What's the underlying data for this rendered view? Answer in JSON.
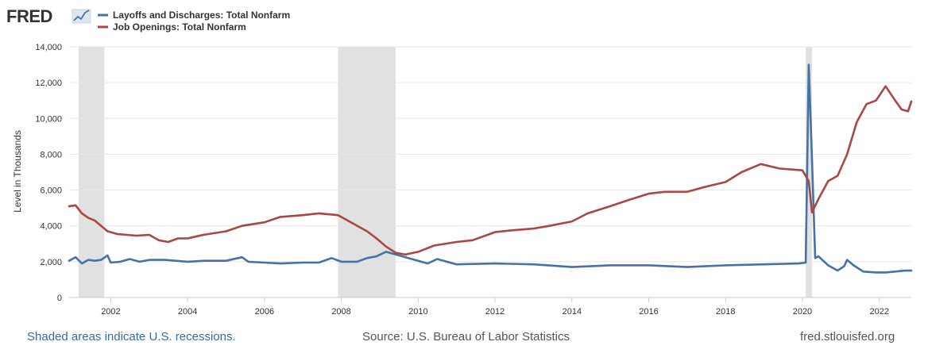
{
  "logo": {
    "text": "FRED"
  },
  "legend": [
    {
      "label": "Layoffs and Discharges: Total Nonfarm",
      "color": "#4572a7"
    },
    {
      "label": "Job Openings: Total Nonfarm",
      "color": "#aa4643"
    }
  ],
  "footer": {
    "note": "Shaded areas indicate U.S. recessions.",
    "source": "Source: U.S. Bureau of Labor Statistics",
    "site": "fred.stlouisfed.org"
  },
  "chart_data": {
    "type": "line",
    "ylabel": "Level in Thousands",
    "ylim": [
      0,
      14000
    ],
    "xlim": [
      "2000-12-01",
      "2022-11-01"
    ],
    "y_ticks": [
      "0",
      "2,000",
      "4,000",
      "6,000",
      "8,000",
      "10,000",
      "12,000",
      "14,000"
    ],
    "x_ticks": [
      "2002",
      "2004",
      "2006",
      "2008",
      "2010",
      "2012",
      "2014",
      "2016",
      "2018",
      "2020",
      "2022"
    ],
    "grid": true,
    "legend_position": "top-left",
    "recessions": [
      [
        "2001-03-01",
        "2001-11-01"
      ],
      [
        "2007-12-01",
        "2009-06-01"
      ],
      [
        "2020-02-01",
        "2020-04-01"
      ]
    ],
    "series": [
      {
        "name": "Layoffs and Discharges: Total Nonfarm",
        "color": "#4572a7",
        "points": [
          [
            "2000-12-01",
            2050
          ],
          [
            "2001-02-01",
            2250
          ],
          [
            "2001-04-01",
            1900
          ],
          [
            "2001-06-01",
            2100
          ],
          [
            "2001-08-01",
            2050
          ],
          [
            "2001-10-01",
            2100
          ],
          [
            "2001-12-01",
            2350
          ],
          [
            "2002-01-01",
            1950
          ],
          [
            "2002-04-01",
            2000
          ],
          [
            "2002-07-01",
            2150
          ],
          [
            "2002-10-01",
            2000
          ],
          [
            "2003-01-01",
            2100
          ],
          [
            "2003-06-01",
            2100
          ],
          [
            "2004-01-01",
            2000
          ],
          [
            "2004-06-01",
            2050
          ],
          [
            "2005-01-01",
            2050
          ],
          [
            "2005-06-01",
            2250
          ],
          [
            "2005-08-01",
            2000
          ],
          [
            "2006-01-01",
            1950
          ],
          [
            "2006-06-01",
            1900
          ],
          [
            "2007-01-01",
            1950
          ],
          [
            "2007-06-01",
            1950
          ],
          [
            "2007-10-01",
            2200
          ],
          [
            "2008-01-01",
            2000
          ],
          [
            "2008-06-01",
            2000
          ],
          [
            "2008-09-01",
            2200
          ],
          [
            "2008-12-01",
            2300
          ],
          [
            "2009-03-01",
            2550
          ],
          [
            "2009-06-01",
            2400
          ],
          [
            "2009-09-01",
            2250
          ],
          [
            "2010-01-01",
            2050
          ],
          [
            "2010-04-01",
            1900
          ],
          [
            "2010-07-01",
            2150
          ],
          [
            "2011-01-01",
            1850
          ],
          [
            "2012-01-01",
            1900
          ],
          [
            "2013-01-01",
            1850
          ],
          [
            "2014-01-01",
            1700
          ],
          [
            "2015-01-01",
            1800
          ],
          [
            "2016-01-01",
            1800
          ],
          [
            "2017-01-01",
            1700
          ],
          [
            "2018-01-01",
            1800
          ],
          [
            "2019-01-01",
            1850
          ],
          [
            "2019-12-01",
            1900
          ],
          [
            "2020-02-01",
            1950
          ],
          [
            "2020-03-01",
            13000
          ],
          [
            "2020-04-01",
            7700
          ],
          [
            "2020-05-01",
            2200
          ],
          [
            "2020-06-01",
            2300
          ],
          [
            "2020-09-01",
            1800
          ],
          [
            "2020-12-01",
            1500
          ],
          [
            "2021-02-01",
            1750
          ],
          [
            "2021-03-01",
            2100
          ],
          [
            "2021-05-01",
            1800
          ],
          [
            "2021-08-01",
            1450
          ],
          [
            "2021-12-01",
            1400
          ],
          [
            "2022-03-01",
            1400
          ],
          [
            "2022-06-01",
            1450
          ],
          [
            "2022-09-01",
            1500
          ],
          [
            "2022-11-01",
            1500
          ]
        ]
      },
      {
        "name": "Job Openings: Total Nonfarm",
        "color": "#aa4643",
        "points": [
          [
            "2000-12-01",
            5100
          ],
          [
            "2001-02-01",
            5150
          ],
          [
            "2001-04-01",
            4700
          ],
          [
            "2001-06-01",
            4450
          ],
          [
            "2001-08-01",
            4300
          ],
          [
            "2001-10-01",
            4000
          ],
          [
            "2001-12-01",
            3700
          ],
          [
            "2002-03-01",
            3550
          ],
          [
            "2002-06-01",
            3500
          ],
          [
            "2002-09-01",
            3450
          ],
          [
            "2003-01-01",
            3500
          ],
          [
            "2003-04-01",
            3200
          ],
          [
            "2003-07-01",
            3100
          ],
          [
            "2003-10-01",
            3300
          ],
          [
            "2004-01-01",
            3300
          ],
          [
            "2004-06-01",
            3500
          ],
          [
            "2005-01-01",
            3700
          ],
          [
            "2005-06-01",
            4000
          ],
          [
            "2006-01-01",
            4200
          ],
          [
            "2006-06-01",
            4500
          ],
          [
            "2007-01-01",
            4600
          ],
          [
            "2007-06-01",
            4700
          ],
          [
            "2007-12-01",
            4600
          ],
          [
            "2008-03-01",
            4300
          ],
          [
            "2008-06-01",
            4000
          ],
          [
            "2008-09-01",
            3700
          ],
          [
            "2008-12-01",
            3300
          ],
          [
            "2009-03-01",
            2850
          ],
          [
            "2009-06-01",
            2500
          ],
          [
            "2009-09-01",
            2400
          ],
          [
            "2010-01-01",
            2550
          ],
          [
            "2010-06-01",
            2900
          ],
          [
            "2011-01-01",
            3100
          ],
          [
            "2011-06-01",
            3200
          ],
          [
            "2012-01-01",
            3650
          ],
          [
            "2012-06-01",
            3750
          ],
          [
            "2013-01-01",
            3850
          ],
          [
            "2013-06-01",
            4000
          ],
          [
            "2014-01-01",
            4250
          ],
          [
            "2014-06-01",
            4700
          ],
          [
            "2015-01-01",
            5100
          ],
          [
            "2015-06-01",
            5400
          ],
          [
            "2016-01-01",
            5800
          ],
          [
            "2016-06-01",
            5900
          ],
          [
            "2017-01-01",
            5900
          ],
          [
            "2017-06-01",
            6150
          ],
          [
            "2018-01-01",
            6450
          ],
          [
            "2018-06-01",
            7000
          ],
          [
            "2018-12-01",
            7450
          ],
          [
            "2019-06-01",
            7200
          ],
          [
            "2020-01-01",
            7100
          ],
          [
            "2020-03-01",
            6500
          ],
          [
            "2020-04-01",
            4750
          ],
          [
            "2020-06-01",
            5500
          ],
          [
            "2020-09-01",
            6500
          ],
          [
            "2020-12-01",
            6800
          ],
          [
            "2021-03-01",
            8000
          ],
          [
            "2021-06-01",
            9800
          ],
          [
            "2021-09-01",
            10800
          ],
          [
            "2021-12-01",
            11000
          ],
          [
            "2022-03-01",
            11800
          ],
          [
            "2022-06-01",
            11000
          ],
          [
            "2022-08-01",
            10500
          ],
          [
            "2022-10-01",
            10400
          ],
          [
            "2022-11-01",
            10950
          ]
        ]
      }
    ]
  }
}
